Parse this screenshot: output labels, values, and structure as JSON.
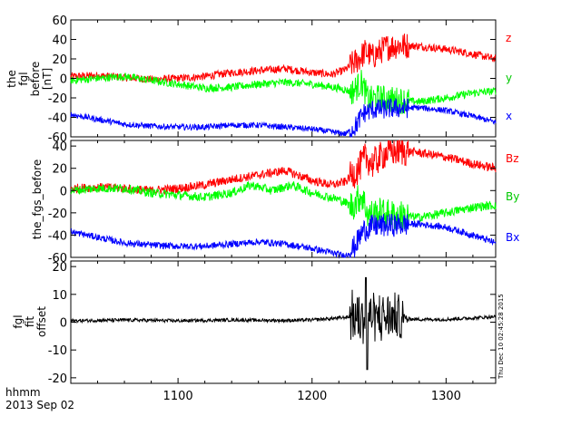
{
  "footer": {
    "time_format": "hhmm",
    "date": "2013 Sep 02"
  },
  "timestamp": "Thu Dec 10 02:45:28 2015",
  "colors": {
    "red": "#ff0000",
    "green": "#00ff00",
    "blue": "#0000ff",
    "black": "#000000"
  },
  "chart_data": [
    {
      "type": "line",
      "ylabel": [
        "the",
        "fgl",
        "before",
        "[nT]"
      ],
      "ylim": [
        -60,
        60
      ],
      "yticks": [
        60,
        40,
        20,
        0,
        -20,
        -40,
        -60
      ],
      "xlim": [
        1020,
        1337
      ],
      "xticks": [
        1100,
        1200,
        1300
      ],
      "series": [
        {
          "name": "z",
          "color": "#ff0000",
          "noise": 4,
          "points": [
            [
              1020,
              2
            ],
            [
              1040,
              3
            ],
            [
              1060,
              1
            ],
            [
              1080,
              -1
            ],
            [
              1100,
              0
            ],
            [
              1120,
              2
            ],
            [
              1140,
              6
            ],
            [
              1160,
              8
            ],
            [
              1180,
              10
            ],
            [
              1200,
              6
            ],
            [
              1215,
              4
            ],
            [
              1225,
              9
            ],
            [
              1235,
              20
            ],
            [
              1240,
              28
            ],
            [
              1245,
              22
            ],
            [
              1255,
              32
            ],
            [
              1265,
              34
            ],
            [
              1280,
              33
            ],
            [
              1300,
              30
            ],
            [
              1320,
              25
            ],
            [
              1337,
              20
            ]
          ]
        },
        {
          "name": "y",
          "color": "#00ff00",
          "noise": 4,
          "points": [
            [
              1020,
              -2
            ],
            [
              1040,
              0
            ],
            [
              1060,
              2
            ],
            [
              1080,
              -2
            ],
            [
              1100,
              -6
            ],
            [
              1120,
              -10
            ],
            [
              1140,
              -9
            ],
            [
              1160,
              -6
            ],
            [
              1180,
              -4
            ],
            [
              1200,
              -6
            ],
            [
              1220,
              -10
            ],
            [
              1230,
              -14
            ],
            [
              1237,
              -4
            ],
            [
              1242,
              -22
            ],
            [
              1250,
              -20
            ],
            [
              1260,
              -22
            ],
            [
              1280,
              -24
            ],
            [
              1300,
              -20
            ],
            [
              1320,
              -15
            ],
            [
              1337,
              -13
            ]
          ]
        },
        {
          "name": "x",
          "color": "#0000ff",
          "noise": 3,
          "points": [
            [
              1020,
              -37
            ],
            [
              1040,
              -42
            ],
            [
              1060,
              -47
            ],
            [
              1080,
              -49
            ],
            [
              1100,
              -50
            ],
            [
              1120,
              -50
            ],
            [
              1140,
              -48
            ],
            [
              1160,
              -48
            ],
            [
              1180,
              -50
            ],
            [
              1200,
              -52
            ],
            [
              1215,
              -55
            ],
            [
              1225,
              -57
            ],
            [
              1232,
              -50
            ],
            [
              1238,
              -36
            ],
            [
              1245,
              -32
            ],
            [
              1260,
              -31
            ],
            [
              1280,
              -30
            ],
            [
              1300,
              -33
            ],
            [
              1320,
              -39
            ],
            [
              1337,
              -45
            ]
          ]
        }
      ]
    },
    {
      "type": "line",
      "ylabel": [
        "the_fgs_before"
      ],
      "ylim": [
        -60,
        45
      ],
      "yticks": [
        40,
        20,
        0,
        -20,
        -40,
        -60
      ],
      "xlim": [
        1020,
        1337
      ],
      "xticks": [
        1100,
        1200,
        1300
      ],
      "series": [
        {
          "name": "Bz",
          "color": "#ff0000",
          "noise": 4,
          "points": [
            [
              1020,
              2
            ],
            [
              1040,
              3
            ],
            [
              1060,
              2
            ],
            [
              1080,
              0
            ],
            [
              1100,
              2
            ],
            [
              1120,
              5
            ],
            [
              1140,
              10
            ],
            [
              1160,
              14
            ],
            [
              1180,
              18
            ],
            [
              1200,
              9
            ],
            [
              1215,
              5
            ],
            [
              1225,
              8
            ],
            [
              1235,
              20
            ],
            [
              1240,
              30
            ],
            [
              1245,
              24
            ],
            [
              1255,
              34
            ],
            [
              1265,
              36
            ],
            [
              1280,
              34
            ],
            [
              1300,
              30
            ],
            [
              1320,
              24
            ],
            [
              1337,
              20
            ]
          ]
        },
        {
          "name": "By",
          "color": "#00ff00",
          "noise": 4,
          "points": [
            [
              1020,
              0
            ],
            [
              1040,
              2
            ],
            [
              1060,
              2
            ],
            [
              1080,
              -2
            ],
            [
              1100,
              -4
            ],
            [
              1120,
              -6
            ],
            [
              1140,
              -2
            ],
            [
              1155,
              5
            ],
            [
              1170,
              0
            ],
            [
              1185,
              5
            ],
            [
              1200,
              -2
            ],
            [
              1220,
              -8
            ],
            [
              1230,
              -14
            ],
            [
              1237,
              -4
            ],
            [
              1242,
              -22
            ],
            [
              1250,
              -20
            ],
            [
              1260,
              -22
            ],
            [
              1280,
              -24
            ],
            [
              1300,
              -20
            ],
            [
              1320,
              -15
            ],
            [
              1337,
              -13
            ]
          ]
        },
        {
          "name": "Bx",
          "color": "#0000ff",
          "noise": 3,
          "points": [
            [
              1020,
              -37
            ],
            [
              1040,
              -42
            ],
            [
              1060,
              -47
            ],
            [
              1080,
              -49
            ],
            [
              1100,
              -50
            ],
            [
              1120,
              -50
            ],
            [
              1140,
              -48
            ],
            [
              1160,
              -46
            ],
            [
              1180,
              -48
            ],
            [
              1200,
              -52
            ],
            [
              1215,
              -56
            ],
            [
              1225,
              -59
            ],
            [
              1232,
              -50
            ],
            [
              1238,
              -36
            ],
            [
              1245,
              -32
            ],
            [
              1260,
              -31
            ],
            [
              1280,
              -30
            ],
            [
              1300,
              -33
            ],
            [
              1320,
              -40
            ],
            [
              1337,
              -47
            ]
          ]
        }
      ]
    },
    {
      "type": "line",
      "ylabel": [
        "fgl",
        "fit",
        "offset"
      ],
      "ylim": [
        -22,
        22
      ],
      "yticks": [
        20,
        10,
        0,
        -10,
        -20
      ],
      "xlim": [
        1020,
        1337
      ],
      "xticks": [
        1100,
        1200,
        1300
      ],
      "xtick_labels": [
        "1100",
        "1200",
        "1300"
      ],
      "series": [
        {
          "name": "",
          "color": "#000000",
          "noise": 0.6,
          "points": [
            [
              1020,
              0.5
            ],
            [
              1060,
              0.8
            ],
            [
              1100,
              0.5
            ],
            [
              1140,
              0.8
            ],
            [
              1180,
              0.6
            ],
            [
              1200,
              0.8
            ],
            [
              1220,
              1.5
            ],
            [
              1230,
              2
            ],
            [
              1240,
              2
            ],
            [
              1260,
              1.5
            ],
            [
              1280,
              1
            ],
            [
              1300,
              1
            ],
            [
              1320,
              1.5
            ],
            [
              1337,
              2
            ]
          ]
        }
      ],
      "burst": {
        "x_range": [
          1228,
          1268
        ],
        "amplitude": 8,
        "spike_x": 1241,
        "spike_min": -17,
        "spike_max": 16
      }
    }
  ]
}
